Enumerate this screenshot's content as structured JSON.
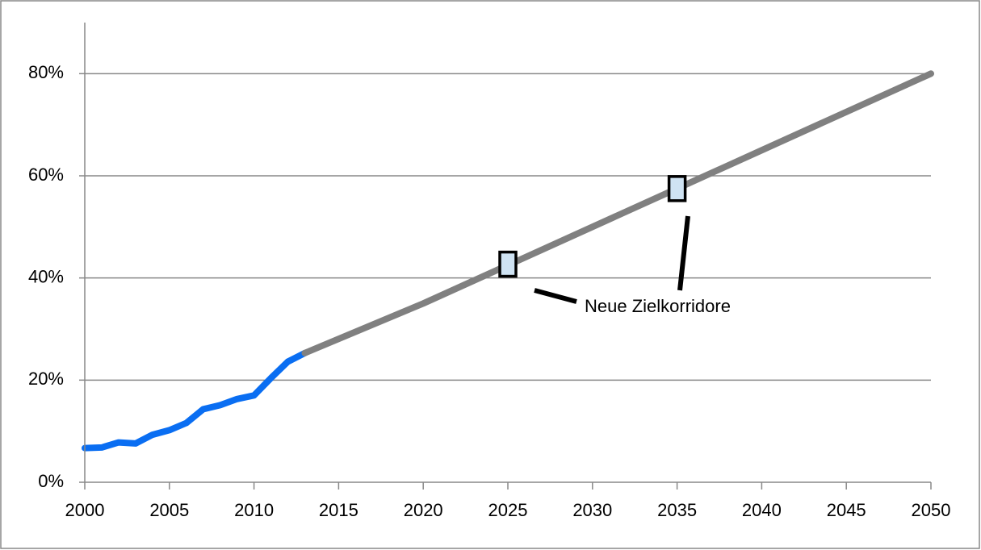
{
  "chart_data": {
    "type": "line",
    "series": [
      {
        "color": "#0a6ef2",
        "x": [
          2000,
          2001,
          2002,
          2003,
          2004,
          2005,
          2006,
          2007,
          2008,
          2009,
          2010,
          2011,
          2012,
          2013
        ],
        "values": [
          6.7,
          6.8,
          7.8,
          7.6,
          9.3,
          10.2,
          11.6,
          14.3,
          15.1,
          16.3,
          17.0,
          20.4,
          23.6,
          25.3
        ]
      },
      {
        "color": "#808080",
        "x": [
          2013,
          2020,
          2025,
          2030,
          2035,
          2040,
          2050
        ],
        "values": [
          25.3,
          35,
          42.5,
          50,
          57.5,
          65,
          80
        ]
      }
    ],
    "markers": {
      "color": "#cfe3f3",
      "x": [
        2025,
        2035
      ],
      "values": [
        42.7,
        57.5
      ]
    },
    "annotation": "Neue Zielkorridore",
    "xlim": [
      2000,
      2050
    ],
    "xticks": [
      2000,
      2005,
      2010,
      2015,
      2020,
      2025,
      2030,
      2035,
      2040,
      2045,
      2050
    ],
    "ylim": [
      0,
      90
    ],
    "yticks": [
      {
        "value": 0,
        "label": "0%"
      },
      {
        "value": 20,
        "label": "20%"
      },
      {
        "value": 40,
        "label": "40%"
      },
      {
        "value": 60,
        "label": "60%"
      },
      {
        "value": 80,
        "label": "80%"
      }
    ],
    "grid": true
  }
}
